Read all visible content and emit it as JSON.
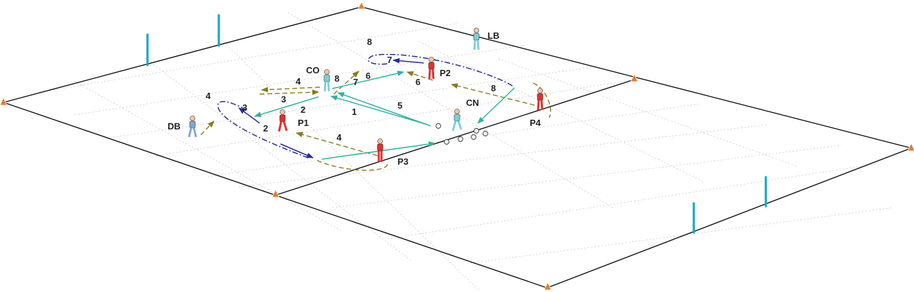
{
  "colors": {
    "pitch_line": "#111111",
    "grid": "#c8c8c8",
    "pass": "#2fb3a3",
    "run": "#8b7a1a",
    "dribble": "#2a2a9a",
    "pole": "#18a8c0",
    "cone": "#e87a2a",
    "red_player": "#e23030",
    "cyan_player": "#7fd0d8"
  },
  "players": [
    {
      "label": "LB",
      "team": "cyan"
    },
    {
      "label": "CO",
      "team": "cyan"
    },
    {
      "label": "P2",
      "team": "red"
    },
    {
      "label": "P4",
      "team": "red"
    },
    {
      "label": "CN",
      "team": "cyan"
    },
    {
      "label": "DB",
      "team": "cyan"
    },
    {
      "label": "P1",
      "team": "red"
    },
    {
      "label": "P3",
      "team": "red"
    }
  ],
  "sequence_numbers": [
    "8",
    "7",
    "6",
    "6",
    "8",
    "4",
    "8",
    "7",
    "3",
    "2",
    "1",
    "5",
    "4",
    "3",
    "2",
    "4"
  ]
}
